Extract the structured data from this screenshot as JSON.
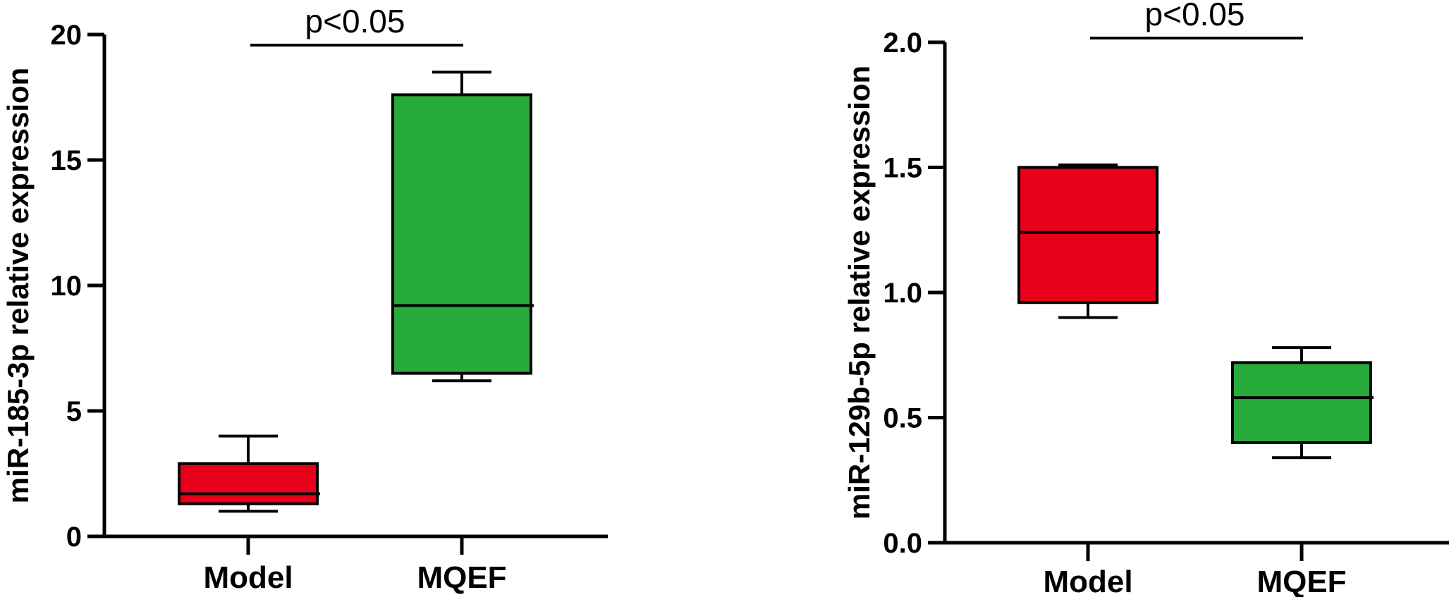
{
  "chart_data": [
    {
      "type": "box",
      "categories": [
        "Model",
        "MQEF"
      ],
      "ylabel": "miR-185-3p relative expression",
      "ylim": [
        0,
        20
      ],
      "yticks": [
        "0",
        "5",
        "10",
        "15",
        "20"
      ],
      "boxes": [
        {
          "category": "Model",
          "min": 1.0,
          "q1": 1.3,
          "median": 1.7,
          "q3": 2.9,
          "max": 4.0,
          "color": "#e8001a"
        },
        {
          "category": "MQEF",
          "min": 6.2,
          "q1": 6.5,
          "median": 9.2,
          "q3": 17.6,
          "max": 18.5,
          "color": "#27ac3b"
        }
      ],
      "significance": {
        "label": "p<0.05",
        "from": "Model",
        "to": "MQEF"
      }
    },
    {
      "type": "box",
      "categories": [
        "Model",
        "MQEF"
      ],
      "ylabel": "miR-129b-5p relative expression",
      "ylim": [
        0,
        2
      ],
      "yticks": [
        "0.0",
        "0.5",
        "1.0",
        "1.5",
        "2.0"
      ],
      "boxes": [
        {
          "category": "Model",
          "min": 0.9,
          "q1": 0.96,
          "median": 1.24,
          "q3": 1.5,
          "max": 1.51,
          "color": "#e8001a"
        },
        {
          "category": "MQEF",
          "min": 0.34,
          "q1": 0.4,
          "median": 0.58,
          "q3": 0.72,
          "max": 0.78,
          "color": "#27ac3b"
        }
      ],
      "significance": {
        "label": "p<0.05",
        "from": "Model",
        "to": "MQEF"
      }
    }
  ]
}
